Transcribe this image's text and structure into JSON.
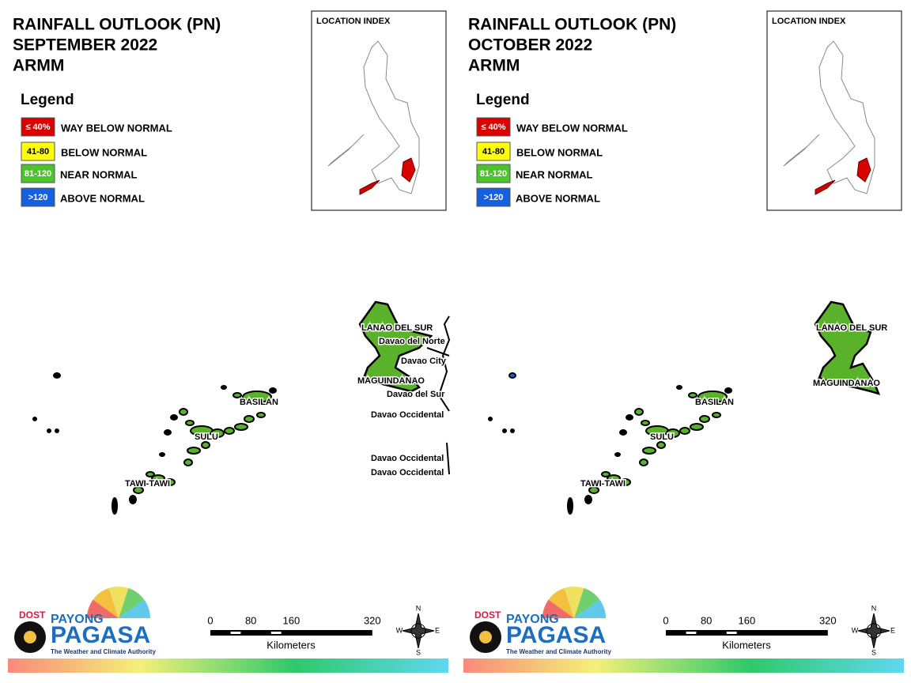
{
  "panels": [
    {
      "title": [
        "RAINFALL OUTLOOK (PN)",
        "SEPTEMBER 2022",
        "ARMM"
      ],
      "legend": {
        "title": "Legend",
        "items": [
          {
            "swatch": "≤ 40%",
            "label": "WAY BELOW NORMAL",
            "color": "#d90000"
          },
          {
            "swatch": "41-80",
            "label": "BELOW NORMAL",
            "color": "#ffff00"
          },
          {
            "swatch": "81-120",
            "label": "NEAR NORMAL",
            "color": "#4cc42c"
          },
          {
            "swatch": ">120",
            "label": "ABOVE NORMAL",
            "color": "#1560e0"
          }
        ]
      },
      "location_index": "LOCATION INDEX",
      "map_labels": [
        "LANAO DEL SUR",
        "Davao del Norte",
        "Davao City",
        "MAGUINDANAO",
        "Davao del Sur",
        "Davao Occidental",
        "BASILAN",
        "SULU",
        "Davao Occidental",
        "Davao Occidental",
        "TAWI-TAWI"
      ],
      "scale": {
        "ticks": [
          0,
          80,
          160,
          320
        ],
        "unit": "Kilometers"
      },
      "compass": {
        "n": "N",
        "e": "E",
        "s": "S",
        "w": "W"
      },
      "logo": {
        "dost": "DOST",
        "payong": "PAYONG",
        "pagasa": "PAGASA",
        "tagline": "The Weather and Climate Authority"
      }
    },
    {
      "title": [
        "RAINFALL OUTLOOK (PN)",
        "OCTOBER 2022",
        "ARMM"
      ],
      "legend": {
        "title": "Legend",
        "items": [
          {
            "swatch": "≤ 40%",
            "label": "WAY BELOW NORMAL",
            "color": "#d90000"
          },
          {
            "swatch": "41-80",
            "label": "BELOW NORMAL",
            "color": "#ffff00"
          },
          {
            "swatch": "81-120",
            "label": "NEAR NORMAL",
            "color": "#4cc42c"
          },
          {
            "swatch": ">120",
            "label": "ABOVE NORMAL",
            "color": "#1560e0"
          }
        ]
      },
      "location_index": "LOCATION INDEX",
      "map_labels": [
        "LANAO DEL SUR",
        "MAGUINDANAO",
        "BASILAN",
        "SULU",
        "TAWI-TAWI"
      ],
      "scale": {
        "ticks": [
          0,
          80,
          160,
          320
        ],
        "unit": "Kilometers"
      },
      "compass": {
        "n": "N",
        "e": "E",
        "s": "S",
        "w": "W"
      },
      "logo": {
        "dost": "DOST",
        "payong": "PAYONG",
        "pagasa": "PAGASA",
        "tagline": "The Weather and Climate Authority"
      }
    }
  ]
}
